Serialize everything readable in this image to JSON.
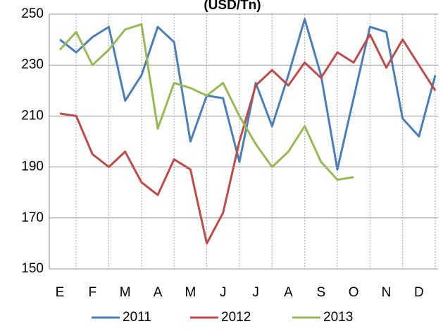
{
  "chart_data": {
    "type": "line",
    "title": "(USD/Tn)",
    "categories": [
      "E",
      null,
      "F",
      null,
      "M",
      null,
      "A",
      null,
      "M",
      null,
      "J",
      null,
      "J",
      null,
      "A",
      null,
      "S",
      null,
      "O",
      null,
      "N",
      null,
      "D",
      null
    ],
    "series": [
      {
        "name": "2011",
        "color": "#4a7ebb",
        "values": [
          240,
          235,
          241,
          245,
          216,
          226,
          245,
          239,
          200,
          218,
          217,
          192,
          223,
          206,
          226,
          248,
          226,
          189,
          217,
          245,
          243,
          209,
          202,
          226
        ]
      },
      {
        "name": "2012",
        "color": "#be4b48",
        "values": [
          211,
          210,
          195,
          190,
          196,
          184,
          179,
          193,
          189,
          160,
          172,
          200,
          222,
          228,
          222,
          231,
          225,
          235,
          231,
          242,
          229,
          240,
          230,
          220
        ]
      },
      {
        "name": "2013",
        "color": "#98b954",
        "values": [
          236,
          243,
          230,
          236,
          244,
          246,
          205,
          223,
          221,
          218,
          223,
          210,
          199,
          190,
          196,
          206,
          192,
          185,
          186,
          null,
          null,
          null,
          null,
          null
        ]
      }
    ],
    "ylim": [
      150,
      250
    ],
    "yticks": [
      150,
      170,
      190,
      210,
      230,
      250
    ],
    "grid": true,
    "legend": "bottom"
  }
}
